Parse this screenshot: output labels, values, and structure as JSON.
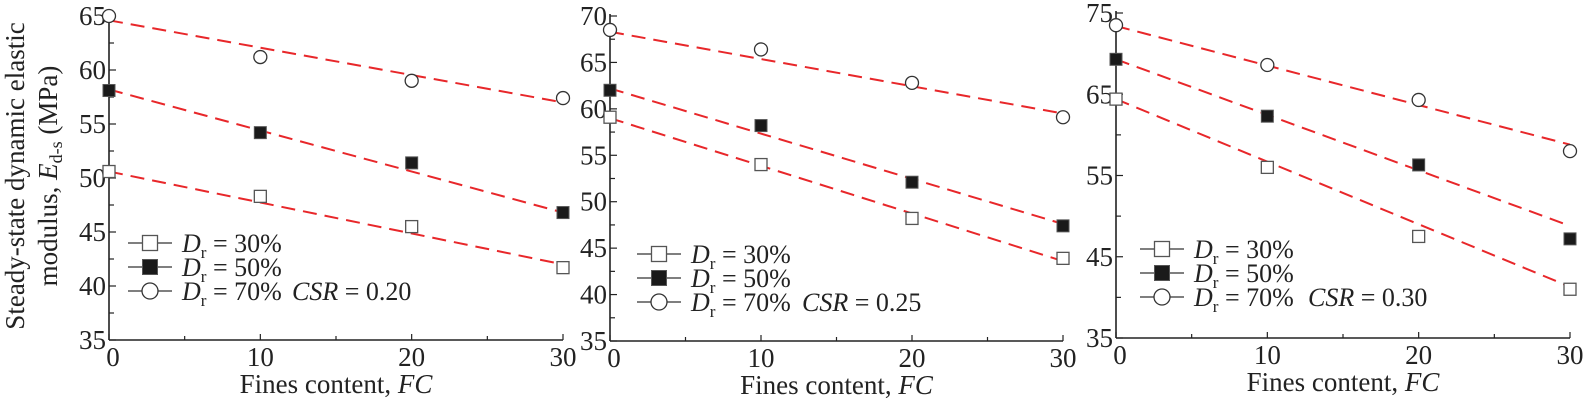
{
  "chart_data": [
    {
      "type": "scatter",
      "title": "CSR = 0.20",
      "annotation": {
        "prefix": "CSR",
        "value": "= 0.20"
      },
      "xlabel": "Fines content, FC",
      "ylabel": "Steady-state dynamic elastic modulus, E_d-s (MPa)",
      "x": [
        0,
        10,
        20,
        30
      ],
      "xticks": [
        0,
        10,
        20,
        30
      ],
      "yticks": [
        35,
        40,
        45,
        50,
        55,
        60,
        65
      ],
      "ylim": [
        35,
        65
      ],
      "xlim": [
        0,
        30
      ],
      "grid": false,
      "legend_position": "lower left",
      "series": [
        {
          "name": "Dr = 30%",
          "marker": "open-square",
          "values": [
            50.6,
            48.3,
            45.5,
            41.7
          ],
          "fit": [
            50.6,
            42.0
          ]
        },
        {
          "name": "Dr = 50%",
          "marker": "filled-square",
          "values": [
            58.1,
            54.2,
            51.4,
            46.8
          ],
          "fit": [
            58.2,
            46.8
          ]
        },
        {
          "name": "Dr = 70%",
          "marker": "open-circle",
          "values": [
            65.0,
            61.2,
            59.0,
            57.4
          ],
          "fit": [
            64.6,
            57.0
          ]
        }
      ]
    },
    {
      "type": "scatter",
      "title": "CSR = 0.25",
      "annotation": {
        "prefix": "CSR",
        "value": "= 0.25"
      },
      "xlabel": "Fines content, FC",
      "ylabel": "",
      "x": [
        0,
        10,
        20,
        30
      ],
      "xticks": [
        0,
        10,
        20,
        30
      ],
      "yticks": [
        35,
        40,
        45,
        50,
        55,
        60,
        65,
        70
      ],
      "ylim": [
        35,
        70
      ],
      "xlim": [
        0,
        30
      ],
      "grid": false,
      "legend_position": "lower left",
      "series": [
        {
          "name": "Dr = 30%",
          "marker": "open-square",
          "values": [
            59.1,
            54.0,
            48.2,
            43.9
          ],
          "fit": [
            59.0,
            43.6
          ]
        },
        {
          "name": "Dr = 50%",
          "marker": "filled-square",
          "values": [
            62.0,
            58.2,
            52.1,
            47.4
          ],
          "fit": [
            62.2,
            47.6
          ]
        },
        {
          "name": "Dr = 70%",
          "marker": "open-circle",
          "values": [
            68.5,
            66.4,
            62.8,
            59.1
          ],
          "fit": [
            68.3,
            59.5
          ]
        }
      ]
    },
    {
      "type": "scatter",
      "title": "CSR = 0.30",
      "annotation": {
        "prefix": "CSR",
        "value": "= 0.30"
      },
      "xlabel": "Fines content, FC",
      "ylabel": "",
      "x": [
        0,
        10,
        20,
        30
      ],
      "xticks": [
        0,
        10,
        20,
        30
      ],
      "yticks": [
        35,
        45,
        55,
        65,
        75
      ],
      "ylim": [
        35,
        75
      ],
      "xlim": [
        0,
        30
      ],
      "grid": false,
      "legend_position": "lower left",
      "series": [
        {
          "name": "Dr = 30%",
          "marker": "open-square",
          "values": [
            64.4,
            56.0,
            47.5,
            41.0
          ],
          "fit": [
            64.4,
            41.3
          ]
        },
        {
          "name": "Dr = 50%",
          "marker": "filled-square",
          "values": [
            69.3,
            62.3,
            56.3,
            47.2
          ],
          "fit": [
            69.3,
            48.8
          ]
        },
        {
          "name": "Dr = 70%",
          "marker": "open-circle",
          "values": [
            73.5,
            68.6,
            64.3,
            58.0
          ],
          "fit": [
            73.4,
            58.8
          ]
        }
      ]
    }
  ],
  "labels": {
    "ylabel_line1": "Steady-state dynamic elastic",
    "ylabel_line2_prefix": "modulus, ",
    "ylabel_symbol": "E",
    "ylabel_subscript": "d-s",
    "ylabel_unit": " (MPa)",
    "xlabel_prefix": "Fines content, ",
    "xlabel_symbol": "FC",
    "legend_symbol": "D",
    "legend_subscript": "r",
    "legend_values": [
      "= 30%",
      "= 50%",
      "= 70%"
    ]
  },
  "colors": {
    "fit_line": "#e8272a",
    "axis": "#222222",
    "marker_fill": "#1a1a1a",
    "open_marker_stroke": "#555555"
  }
}
